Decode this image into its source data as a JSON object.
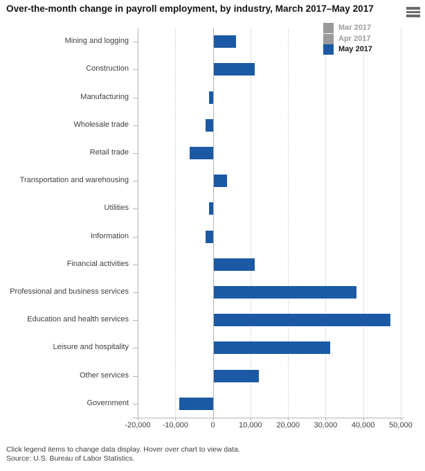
{
  "header": {
    "title": "Over-the-month change in payroll employment, by industry, March 2017–May 2017"
  },
  "legend": {
    "items": [
      {
        "label": "Mar 2017",
        "swatch_color": "#9a9a9a",
        "text_color": "#9b9b9b",
        "enabled": false
      },
      {
        "label": "Apr 2017",
        "swatch_color": "#9a9a9a",
        "text_color": "#9b9b9b",
        "enabled": false
      },
      {
        "label": "May 2017",
        "swatch_color": "#1b59a5",
        "text_color": "#1a1a1a",
        "enabled": true
      }
    ]
  },
  "chart_data": {
    "type": "bar",
    "orientation": "horizontal",
    "title": "Over-the-month change in payroll employment, by industry, March 2017–May 2017",
    "xlabel": "",
    "ylabel": "",
    "grid": "dotted-vertical",
    "legend_position": "top-right",
    "categories": [
      "Mining and logging",
      "Construction",
      "Manufacturing",
      "Wholesale trade",
      "Retail trade",
      "Transportation and warehousing",
      "Utilities",
      "Information",
      "Financial activities",
      "Professional and business services",
      "Education and health services",
      "Leisure and hospitality",
      "Other services",
      "Government"
    ],
    "series": [
      {
        "name": "Mar 2017",
        "visible": false
      },
      {
        "name": "Apr 2017",
        "visible": false
      },
      {
        "name": "May 2017",
        "visible": true,
        "color": "#1b59a5",
        "values": [
          6000,
          11000,
          -1000,
          -2000,
          -6100,
          3600,
          -1000,
          -2000,
          11000,
          38000,
          47000,
          31000,
          12000,
          -9000
        ]
      }
    ],
    "axis": {
      "min": -20000,
      "max": 50000,
      "ticks": [
        {
          "value": -20000,
          "label": "-20,000"
        },
        {
          "value": -10000,
          "label": "-10,000"
        },
        {
          "value": 0,
          "label": "0"
        },
        {
          "value": 10000,
          "label": "10,000"
        },
        {
          "value": 20000,
          "label": "20,000"
        },
        {
          "value": 30000,
          "label": "30,000"
        },
        {
          "value": 40000,
          "label": "40,000"
        },
        {
          "value": 50000,
          "label": "50,000"
        }
      ]
    }
  },
  "footer": {
    "note": "Click legend items to change data display. Hover over chart to view data.",
    "source": "Source: U.S. Bureau of Labor Statistics."
  },
  "colors": {
    "bar_blue": "#1b59a5",
    "axis_line": "#b3b3b3",
    "gridline": "#c9c9c9",
    "label_text": "#3f3f3f"
  }
}
